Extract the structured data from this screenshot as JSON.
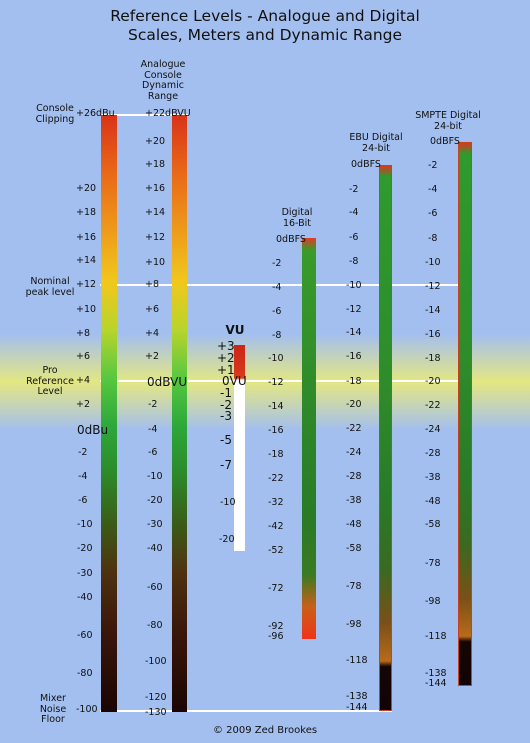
{
  "title_line1": "Reference Levels - Analogue and Digital",
  "title_line2": "Scales, Meters and Dynamic Range",
  "footer": "© 2009 Zed Brookes",
  "left_labels": {
    "console_clipping": "Console\nClipping",
    "nominal_peak": "Nominal\npeak level",
    "pro_reference": "Pro\nReference\nLevel",
    "mixer_noise": "Mixer\nNoise\nFloor"
  },
  "columns": {
    "analogue_dbu": {
      "ticks": [
        "+26dBu",
        "+20",
        "+18",
        "+16",
        "+14",
        "+12",
        "+10",
        "+8",
        "+6",
        "+4",
        "+2",
        "0dBu",
        "-2",
        "-4",
        "-6",
        "-10",
        "-20",
        "-30",
        "-40",
        "-60",
        "-80",
        "-100"
      ]
    },
    "analogue_console": {
      "header": "Analogue\nConsole\nDynamic\nRange",
      "ticks": [
        "+22dBVU",
        "+20",
        "+18",
        "+16",
        "+14",
        "+12",
        "+10",
        "+8",
        "+6",
        "+4",
        "+2",
        "0dBVU",
        "-2",
        "-4",
        "-6",
        "-10",
        "-20",
        "-30",
        "-40",
        "-60",
        "-80",
        "-100",
        "-120",
        "-130"
      ]
    },
    "vu": {
      "header": "VU",
      "ticks": [
        "+3",
        "+2",
        "+1",
        "0VU",
        "-1",
        "-2",
        "-3",
        "-5",
        "-7",
        "-10",
        "-20"
      ]
    },
    "digital16": {
      "header": "Digital\n16-Bit",
      "ticks": [
        "0dBFS",
        "-2",
        "-4",
        "-6",
        "-8",
        "-10",
        "-12",
        "-14",
        "-16",
        "-18",
        "-22",
        "-32",
        "-42",
        "-52",
        "-72",
        "-92",
        "-96"
      ]
    },
    "ebu24": {
      "header": "EBU Digital\n24-bit",
      "ticks": [
        "0dBFS",
        "-2",
        "-4",
        "-6",
        "-8",
        "-10",
        "-12",
        "-14",
        "-16",
        "-18",
        "-20",
        "-22",
        "-24",
        "-28",
        "-38",
        "-48",
        "-58",
        "-78",
        "-98",
        "-118",
        "-138",
        "-144"
      ]
    },
    "smpte24": {
      "header": "SMPTE Digital\n24-bit",
      "ticks": [
        "0dBFS",
        "-2",
        "-4",
        "-6",
        "-8",
        "-10",
        "-12",
        "-14",
        "-16",
        "-18",
        "-20",
        "-22",
        "-24",
        "-28",
        "-38",
        "-48",
        "-58",
        "-78",
        "-98",
        "-118",
        "-138",
        "-144"
      ]
    }
  }
}
